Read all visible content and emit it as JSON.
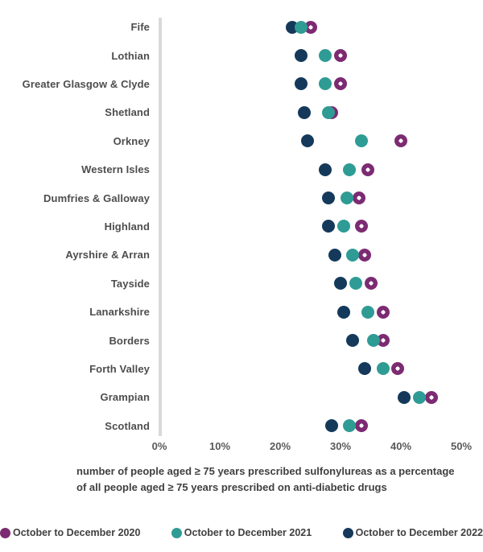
{
  "colors": {
    "purple": "#7c2b72",
    "teal": "#2e9c94",
    "navy": "#14395b",
    "axis_line": "#d9d9d9"
  },
  "chart_data": {
    "type": "scatter",
    "subtype": "horizontal-dot-plot",
    "caption": "number of people aged ≥ 75 years prescribed sulfonylureas as a percentage of all people aged ≥ 75 years prescribed on anti-diabetic drugs",
    "categories": [
      "Fife",
      "Lothian",
      "Greater Glasgow & Clyde",
      "Shetland",
      "Orkney",
      "Western Isles",
      "Dumfries & Galloway",
      "Highland",
      "Ayrshire & Arran",
      "Tayside",
      "Lanarkshire",
      "Borders",
      "Forth Valley",
      "Grampian",
      "Scotland"
    ],
    "series": [
      {
        "name": "October to December 2020",
        "color_key": "purple",
        "marker": "ring",
        "values": [
          25,
          30,
          30,
          28.5,
          40,
          34.5,
          33,
          33.5,
          34,
          35,
          37,
          37,
          39.5,
          45,
          33.5
        ]
      },
      {
        "name": "October to December 2021",
        "color_key": "teal",
        "marker": "solid",
        "values": [
          23.5,
          27.5,
          27.5,
          28,
          33.5,
          31.5,
          31,
          30.5,
          32,
          32.5,
          34.5,
          35.5,
          37,
          43,
          31.5
        ]
      },
      {
        "name": "October to December 2022",
        "color_key": "navy",
        "marker": "solid",
        "values": [
          22,
          23.5,
          23.5,
          24,
          24.5,
          27.5,
          28,
          28,
          29,
          30,
          30.5,
          32,
          34,
          40.5,
          28.5
        ]
      }
    ],
    "x_ticks": [
      "0%",
      "10%",
      "20%",
      "30%",
      "40%",
      "50%"
    ],
    "xlim": [
      0,
      50
    ],
    "grid": false,
    "legend_position": "bottom"
  },
  "legend": {
    "items": [
      {
        "label": "October to December 2020",
        "color_key": "purple"
      },
      {
        "label": "October to December 2021",
        "color_key": "teal"
      },
      {
        "label": "October to December 2022",
        "color_key": "navy"
      }
    ]
  }
}
